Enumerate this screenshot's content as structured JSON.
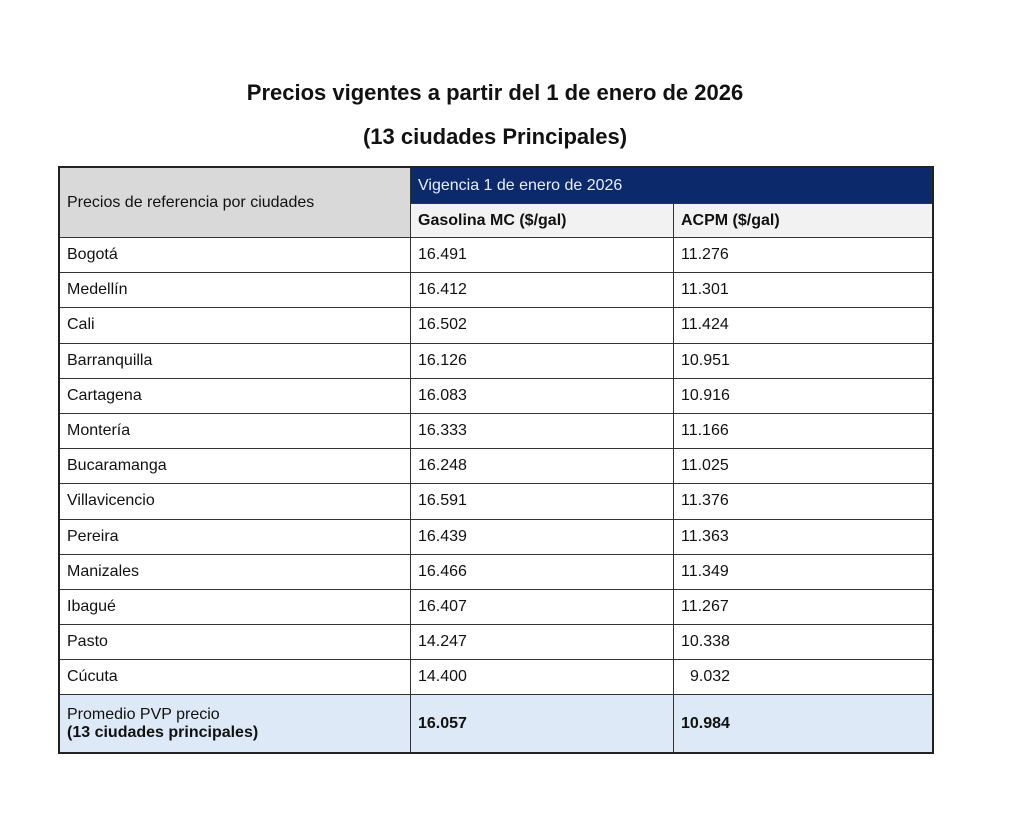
{
  "title": "Precios vigentes a partir del 1 de enero de 2026",
  "subtitle": "(13 ciudades Principales)",
  "table": {
    "ref_header": "Precios de referencia por ciudades",
    "vigencia_header": "Vigencia 1 de enero de 2026",
    "columns": [
      "Gasolina MC ($/gal)",
      "ACPM ($/gal)"
    ],
    "rows": [
      {
        "city": "Bogotá",
        "gasolina": "16.491",
        "acpm": "11.276"
      },
      {
        "city": "Medellín",
        "gasolina": "16.412",
        "acpm": "11.301"
      },
      {
        "city": "Cali",
        "gasolina": "16.502",
        "acpm": "11.424"
      },
      {
        "city": "Barranquilla",
        "gasolina": "16.126",
        "acpm": "10.951"
      },
      {
        "city": "Cartagena",
        "gasolina": "16.083",
        "acpm": "10.916"
      },
      {
        "city": "Montería",
        "gasolina": "16.333",
        "acpm": "11.166"
      },
      {
        "city": "Bucaramanga",
        "gasolina": "16.248",
        "acpm": "11.025"
      },
      {
        "city": "Villavicencio",
        "gasolina": "16.591",
        "acpm": "11.376"
      },
      {
        "city": "Pereira",
        "gasolina": "16.439",
        "acpm": "11.363"
      },
      {
        "city": "Manizales",
        "gasolina": "16.466",
        "acpm": "11.349"
      },
      {
        "city": "Ibagué",
        "gasolina": "16.407",
        "acpm": "11.267"
      },
      {
        "city": "Pasto",
        "gasolina": "14.247",
        "acpm": "10.338"
      },
      {
        "city": "Cúcuta",
        "gasolina": "14.400",
        "acpm": "9.032"
      }
    ],
    "footer": {
      "label_line1": "Promedio PVP precio",
      "label_line2": "(13 ciudades principales)",
      "gasolina": "16.057",
      "acpm": "10.984"
    }
  },
  "colors": {
    "header_navy": "#0c2a6b",
    "footer_blue": "#dde9f6",
    "ref_gray": "#d9d9d9"
  }
}
